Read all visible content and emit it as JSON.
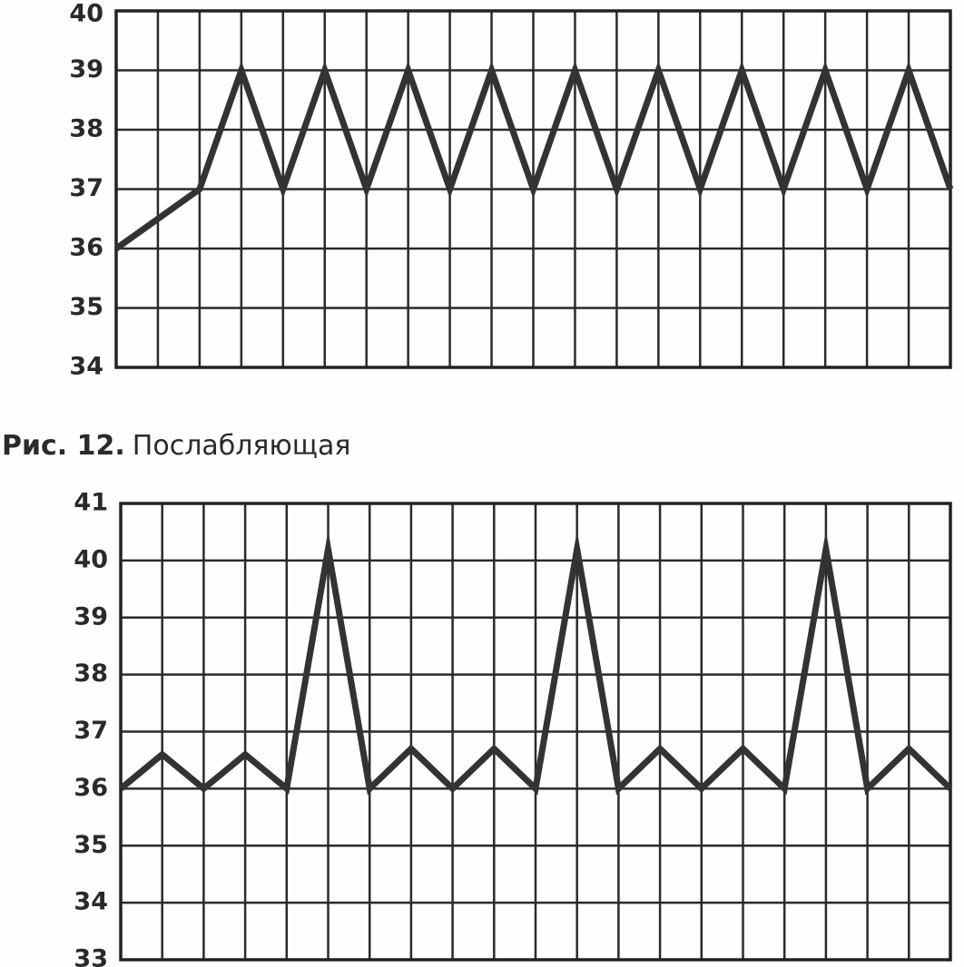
{
  "chart_data": [
    {
      "type": "line",
      "caption_label": "Рис. 12.",
      "caption": "Послабляющая",
      "x": [
        0,
        2,
        3,
        4,
        5,
        6,
        7,
        8,
        9,
        10,
        11,
        12,
        13,
        14,
        15,
        16,
        17,
        18,
        19,
        20
      ],
      "values": [
        36,
        37,
        39,
        37,
        39,
        37,
        39,
        37,
        39,
        37,
        39,
        37,
        39,
        37,
        39,
        37,
        39,
        37,
        39,
        37
      ],
      "color": "#333333",
      "xlim": [
        0,
        20
      ],
      "ylim": [
        34,
        40
      ],
      "yticks": [
        34,
        35,
        36,
        37,
        38,
        39,
        40
      ],
      "grid": true
    },
    {
      "type": "line",
      "x": [
        0,
        1,
        2,
        3,
        4,
        5,
        6,
        7,
        8,
        9,
        10,
        11,
        12,
        13,
        14,
        15,
        16,
        17,
        18,
        19,
        20
      ],
      "values": [
        36,
        36.6,
        36,
        36.6,
        36,
        40.2,
        36,
        36.7,
        36,
        36.7,
        36,
        40.2,
        36,
        36.7,
        36,
        36.7,
        36,
        40.2,
        36,
        36.7,
        36
      ],
      "color": "#333333",
      "xlim": [
        0,
        20
      ],
      "ylim": [
        33,
        41
      ],
      "yticks": [
        33,
        34,
        35,
        36,
        37,
        38,
        39,
        40,
        41
      ],
      "grid": true
    }
  ]
}
